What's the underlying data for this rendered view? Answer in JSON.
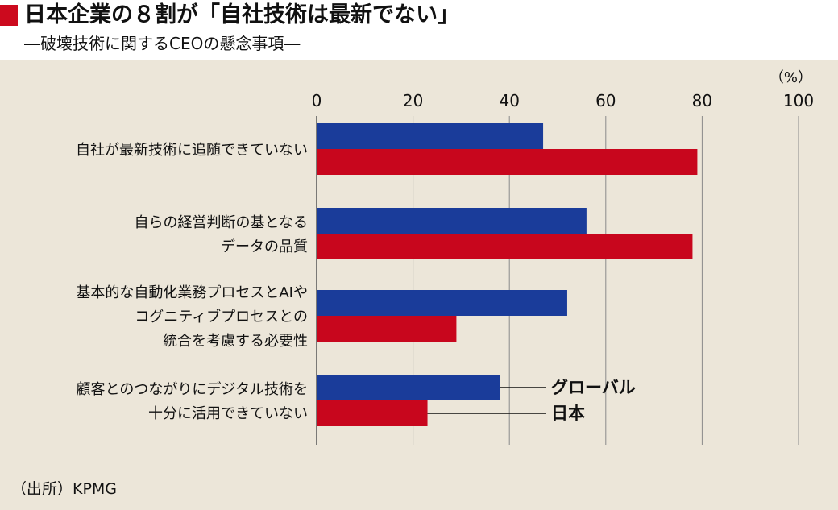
{
  "header": {
    "title": "日本企業の８割が「自社技術は最新でない」",
    "subtitle": "―破壊技術に関するCEOの懸念事項―"
  },
  "source": "（出所）KPMG",
  "colors": {
    "global": "#1a3c9a",
    "japan": "#c8061d",
    "accent": "#cc0a1e"
  },
  "chart_data": {
    "type": "bar",
    "orientation": "horizontal",
    "unit": "（%）",
    "xlim": [
      0,
      100
    ],
    "xticks": [
      0,
      20,
      40,
      60,
      80,
      100
    ],
    "grid": true,
    "categories": [
      [
        "自社が最新技術に追随できていない"
      ],
      [
        "自らの経営判断の基となる",
        "データの品質"
      ],
      [
        "基本的な自動化業務プロセスとAIや",
        "コグニティブプロセスとの",
        "統合を考慮する必要性"
      ],
      [
        "顧客とのつながりにデジタル技術を",
        "十分に活用できていない"
      ]
    ],
    "series": [
      {
        "name": "グローバル",
        "values": [
          47,
          56,
          52,
          38
        ]
      },
      {
        "name": "日本",
        "values": [
          79,
          78,
          29,
          23
        ]
      }
    ]
  }
}
